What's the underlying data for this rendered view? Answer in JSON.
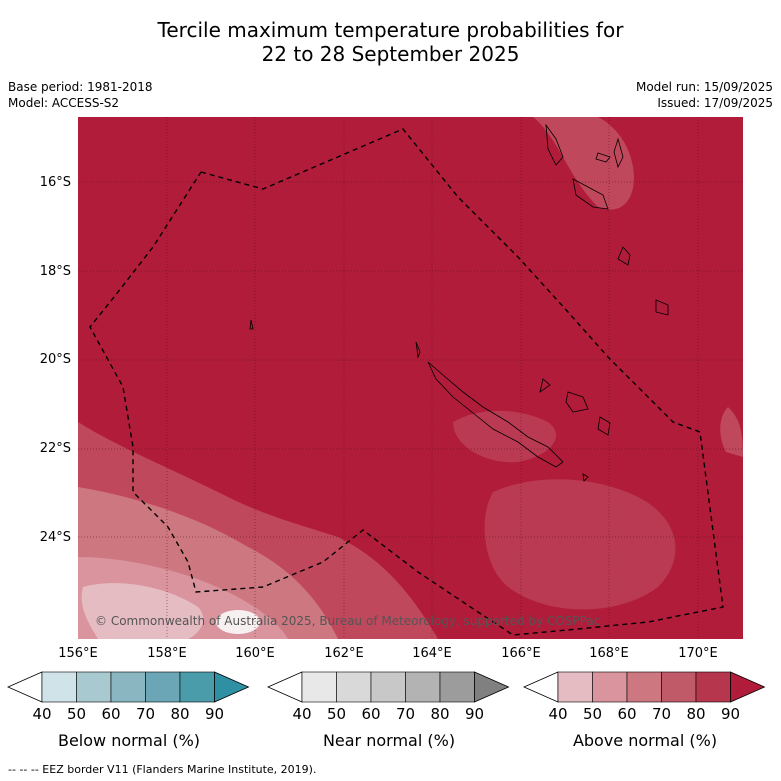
{
  "title_line1": "Tercile maximum temperature probabilities for",
  "title_line2": "22 to 28 September 2025",
  "meta_left": [
    "Base period: 1981-2018",
    "Model: ACCESS-S2"
  ],
  "meta_right": [
    "Model run: 15/09/2025",
    "Issued: 17/09/2025"
  ],
  "lat_labels": [
    "16°S",
    "18°S",
    "20°S",
    "22°S",
    "24°S"
  ],
  "lon_labels": [
    "156°E",
    "158°E",
    "160°E",
    "162°E",
    "164°E",
    "166°E",
    "168°E",
    "170°E"
  ],
  "copyright": "© Commonwealth of Australia 2025, Bureau of Meteorology, supported by COSPPac",
  "colorbars": [
    {
      "label": "Below normal (%)",
      "ticks": [
        "40",
        "50",
        "60",
        "70",
        "80",
        "90"
      ],
      "colors": [
        "#cfe3e8",
        "#a8c9cf",
        "#89b6c1",
        "#6aa6b5",
        "#4a9cab",
        "#2f8fa3"
      ]
    },
    {
      "label": "Near normal (%)",
      "ticks": [
        "40",
        "50",
        "60",
        "70",
        "80",
        "90"
      ],
      "colors": [
        "#e8e8e8",
        "#d9d9d9",
        "#c8c8c8",
        "#b3b3b3",
        "#9c9c9c",
        "#808080"
      ]
    },
    {
      "label": "Above normal (%)",
      "ticks": [
        "40",
        "50",
        "60",
        "70",
        "80",
        "90"
      ],
      "colors": [
        "#e6bcc3",
        "#d9949e",
        "#cd7880",
        "#c05a68",
        "#b6374d",
        "#b01c3a"
      ]
    }
  ],
  "footer": "--  --  -- EEZ border V11 (Flanders Marine Institute, 2019).",
  "colors": {
    "map_base": "#b01c3a"
  }
}
